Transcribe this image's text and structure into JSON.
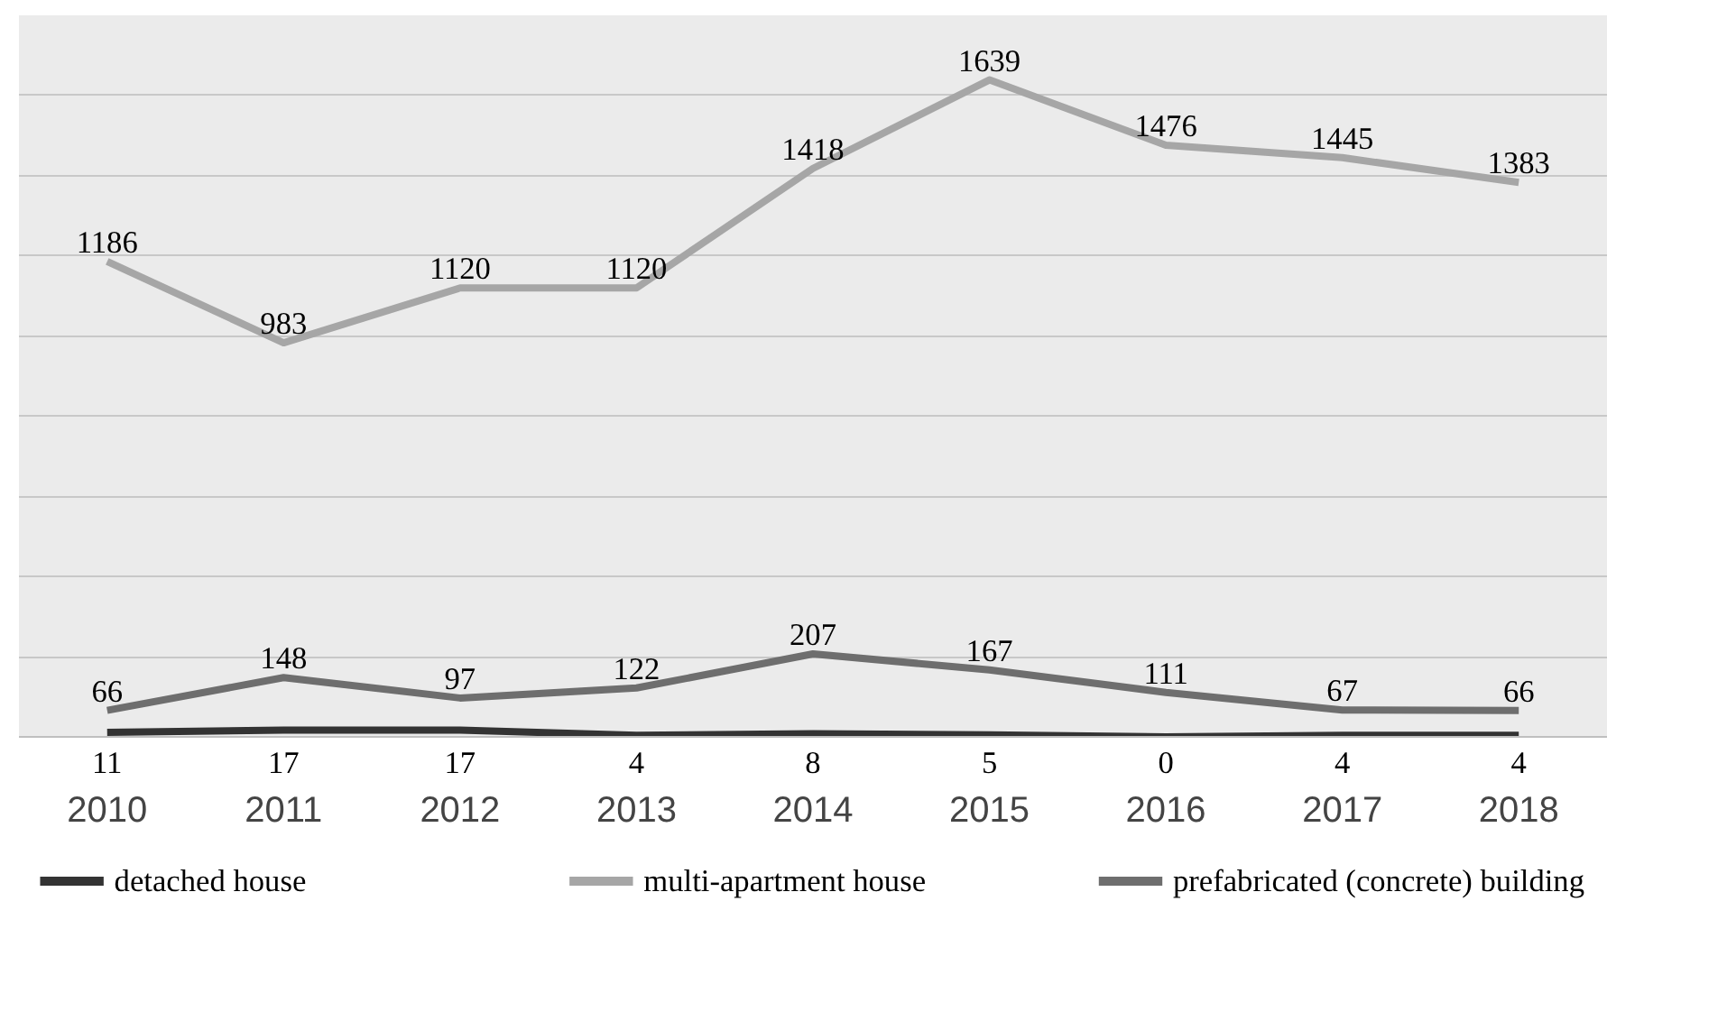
{
  "chart_data": {
    "type": "line",
    "categories": [
      "2010",
      "2011",
      "2012",
      "2013",
      "2014",
      "2015",
      "2016",
      "2017",
      "2018"
    ],
    "series": [
      {
        "name": "detached house",
        "color": "#333333",
        "values": [
          11,
          17,
          17,
          4,
          8,
          5,
          0,
          4,
          4
        ]
      },
      {
        "name": "multi-apartment house",
        "color": "#a6a6a6",
        "values": [
          1186,
          983,
          1120,
          1120,
          1418,
          1639,
          1476,
          1445,
          1383
        ]
      },
      {
        "name": "prefabricated (concrete) building",
        "color": "#6e6e6e",
        "values": [
          66,
          148,
          97,
          122,
          207,
          167,
          111,
          67,
          66
        ]
      }
    ],
    "ylim": [
      0,
      1800
    ],
    "yticks": [
      {
        "value": 0,
        "label": null
      },
      {
        "value": 200,
        "label": null
      },
      {
        "value": 400,
        "label": null
      },
      {
        "value": 600,
        "label": null
      },
      {
        "value": 800,
        "label": null
      },
      {
        "value": 1000,
        "label": null
      },
      {
        "value": 1200,
        "label": null
      },
      {
        "value": 1400,
        "label": null
      },
      {
        "value": 1600,
        "label": null
      },
      {
        "value": 1800,
        "label": null
      }
    ],
    "grid": "y",
    "tick_labels": "x",
    "data_labels": true,
    "legend": "bottom",
    "marker": "none",
    "line_style": "solid"
  }
}
